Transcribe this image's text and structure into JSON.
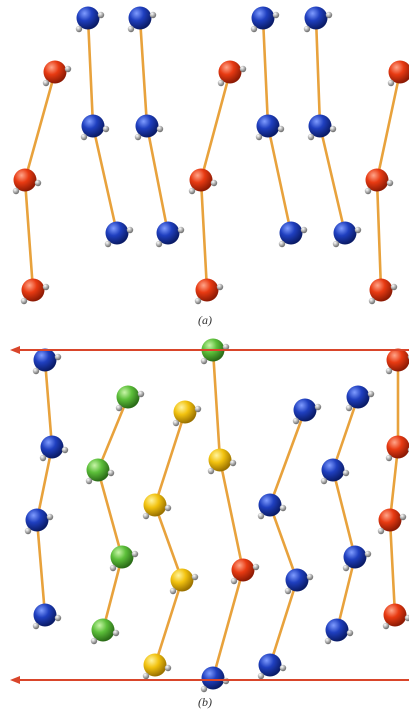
{
  "figure": {
    "panel_a_label": "(a)",
    "panel_b_label": "(b)"
  }
}
